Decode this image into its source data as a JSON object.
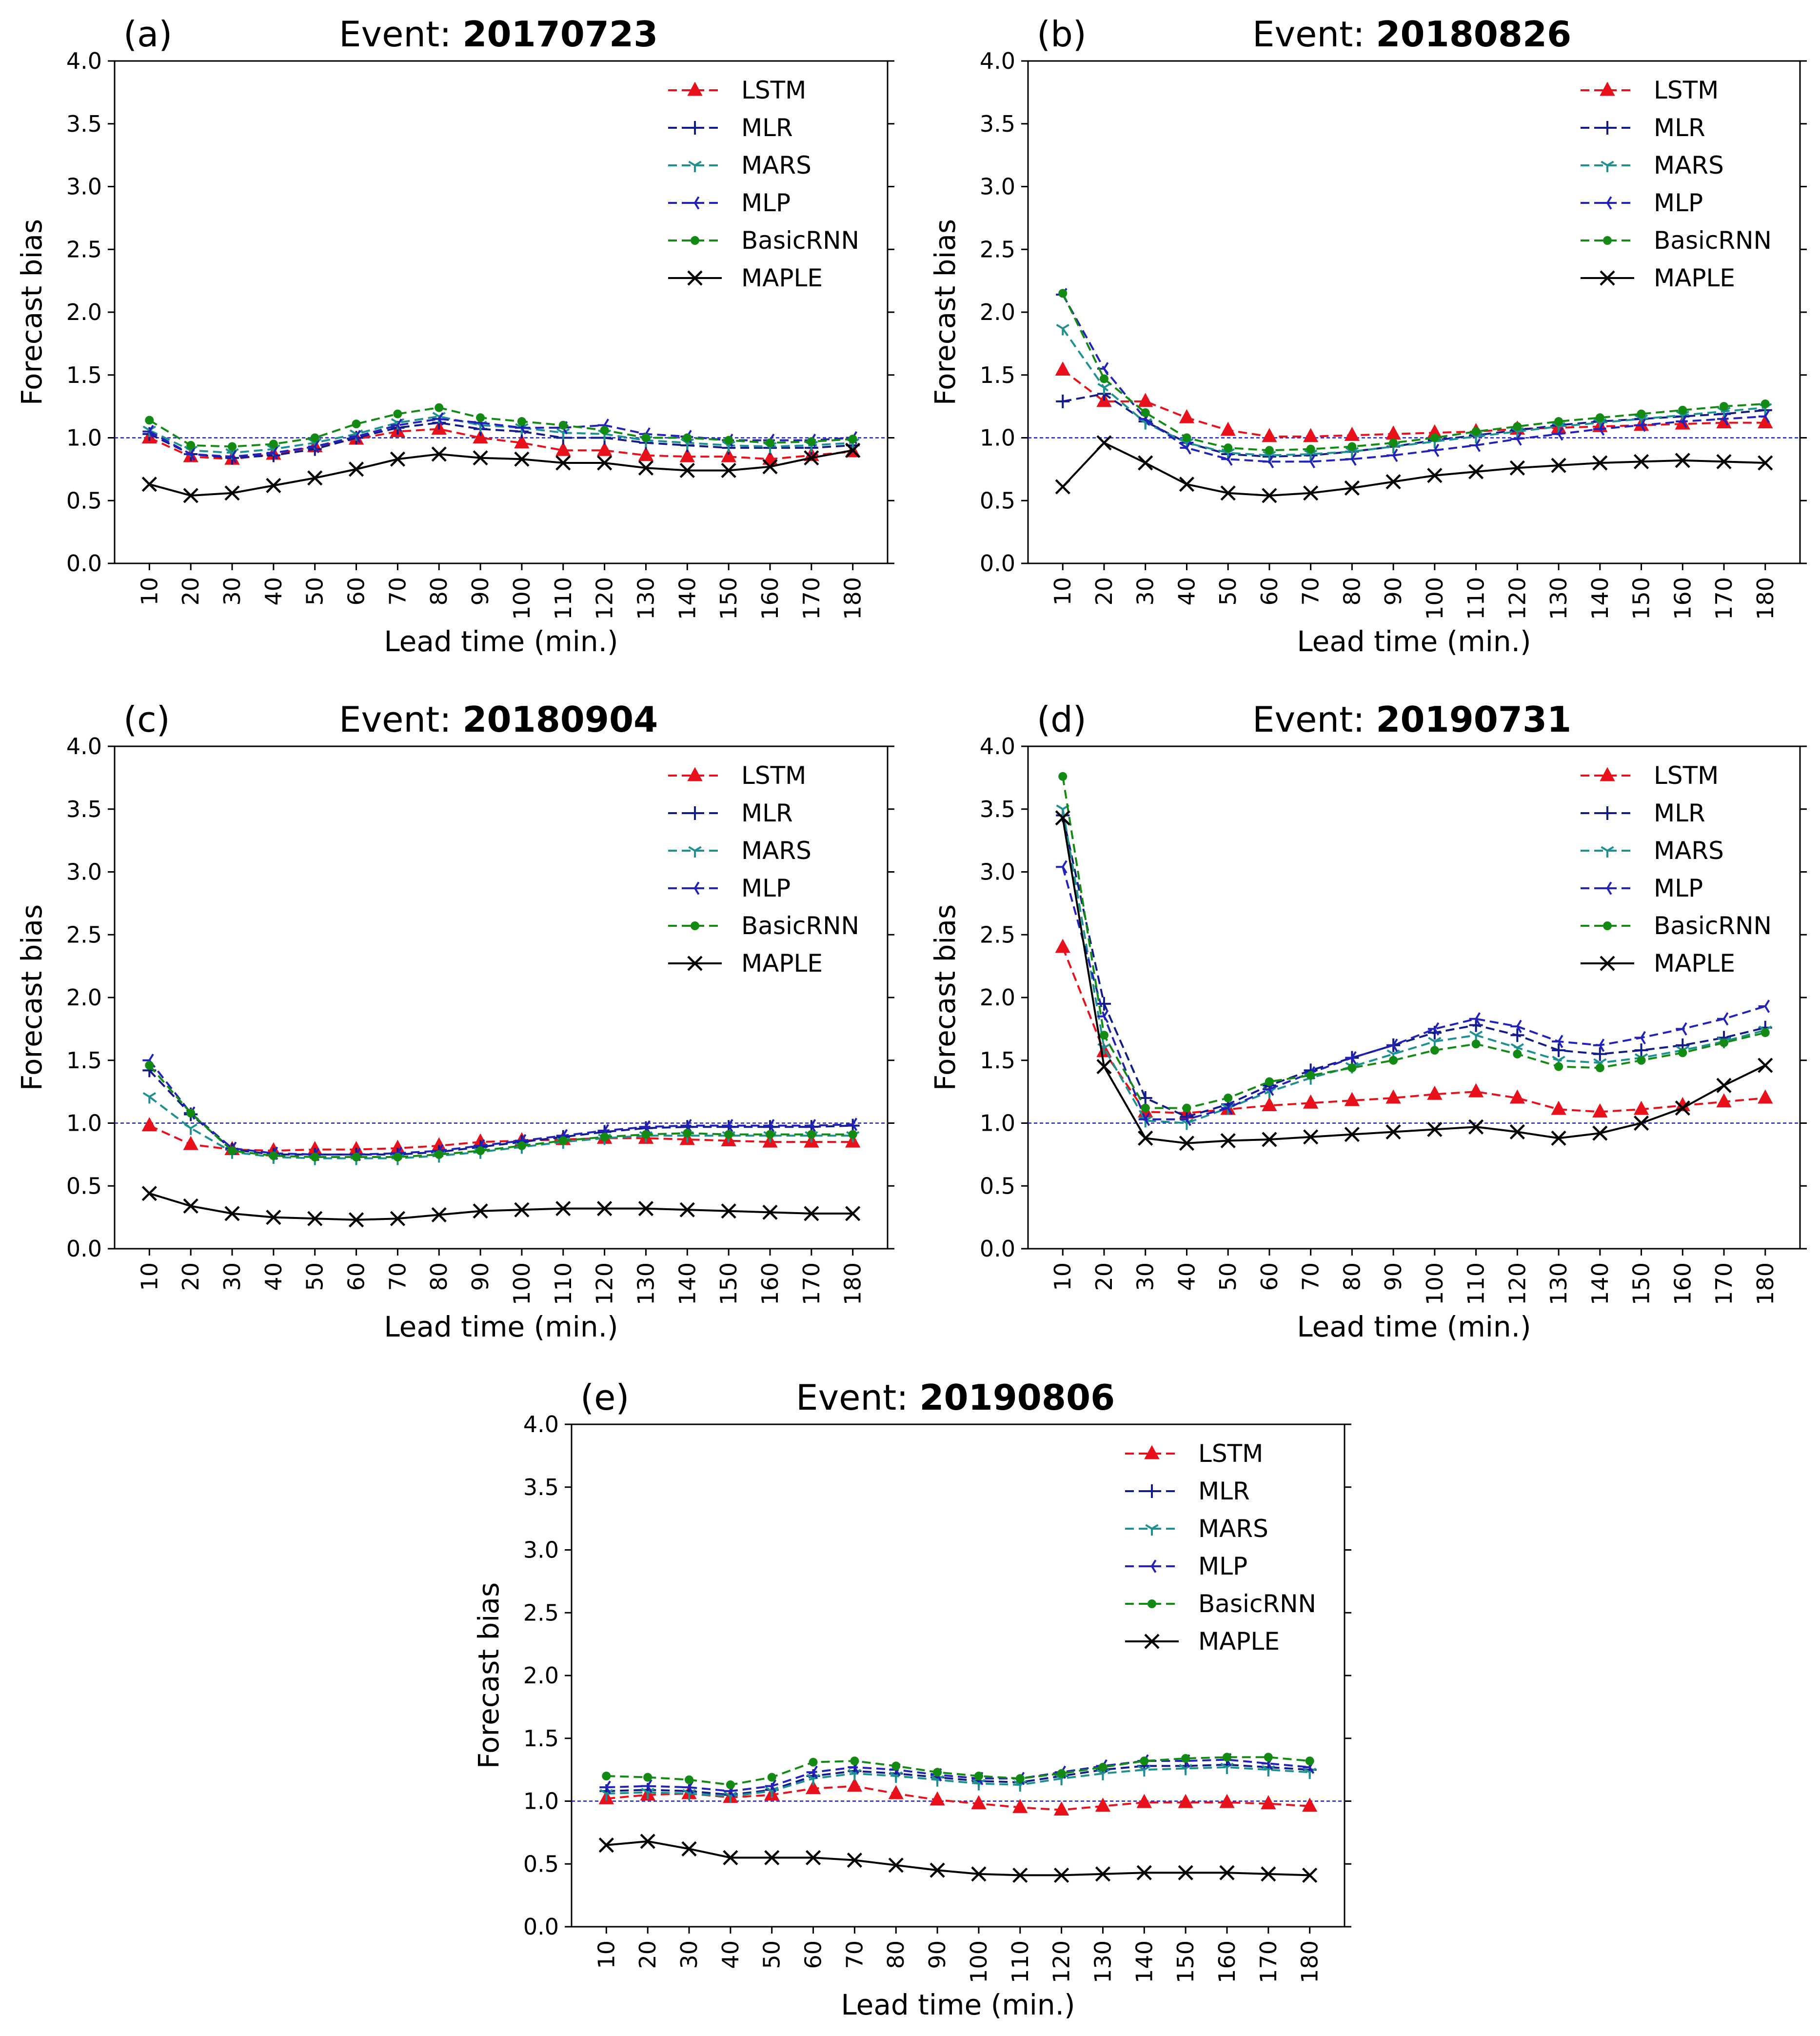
{
  "chart_data": [
    {
      "type": "line",
      "panel": "(a)",
      "title_prefix": "Event: ",
      "title_event": "20170723",
      "xlabel": "Lead time (min.)",
      "ylabel": "Forecast bias",
      "ylim": [
        0,
        4
      ],
      "yticks": [
        "0.0",
        "0.5",
        "1.0",
        "1.5",
        "2.0",
        "2.5",
        "3.0",
        "3.5",
        "4.0"
      ],
      "x": [
        10,
        20,
        30,
        40,
        50,
        60,
        70,
        80,
        90,
        100,
        110,
        120,
        130,
        140,
        150,
        160,
        170,
        180
      ],
      "reference_line": 1.0,
      "legend_position": "top-right",
      "series": [
        {
          "name": "LSTM",
          "values": [
            1.0,
            0.85,
            0.83,
            0.87,
            0.93,
            0.99,
            1.05,
            1.07,
            1.0,
            0.96,
            0.9,
            0.9,
            0.86,
            0.85,
            0.85,
            0.83,
            0.86,
            0.89
          ]
        },
        {
          "name": "MLR",
          "values": [
            1.03,
            0.87,
            0.84,
            0.86,
            0.91,
            1.0,
            1.08,
            1.12,
            1.07,
            1.05,
            1.0,
            1.0,
            0.96,
            0.94,
            0.92,
            0.92,
            0.92,
            0.94
          ]
        },
        {
          "name": "MARS",
          "values": [
            1.06,
            0.9,
            0.88,
            0.91,
            0.96,
            1.03,
            1.12,
            1.17,
            1.1,
            1.08,
            1.04,
            1.03,
            0.98,
            0.96,
            0.94,
            0.93,
            0.94,
            0.96
          ]
        },
        {
          "name": "MLP",
          "values": [
            1.05,
            0.87,
            0.85,
            0.88,
            0.93,
            1.01,
            1.1,
            1.15,
            1.12,
            1.08,
            1.08,
            1.1,
            1.03,
            1.01,
            0.98,
            0.98,
            0.98,
            1.0
          ]
        },
        {
          "name": "BasicRNN",
          "values": [
            1.14,
            0.94,
            0.93,
            0.95,
            1.0,
            1.11,
            1.19,
            1.24,
            1.16,
            1.13,
            1.1,
            1.06,
            1.0,
            1.0,
            0.98,
            0.96,
            0.97,
            0.99
          ]
        },
        {
          "name": "MAPLE",
          "values": [
            0.63,
            0.54,
            0.56,
            0.62,
            0.68,
            0.75,
            0.83,
            0.87,
            0.84,
            0.83,
            0.8,
            0.8,
            0.76,
            0.74,
            0.74,
            0.77,
            0.84,
            0.9
          ]
        }
      ]
    },
    {
      "type": "line",
      "panel": "(b)",
      "title_prefix": "Event: ",
      "title_event": "20180826",
      "xlabel": "Lead time (min.)",
      "ylabel": "Forecast bias",
      "ylim": [
        0,
        4
      ],
      "yticks": [
        "0.0",
        "0.5",
        "1.0",
        "1.5",
        "2.0",
        "2.5",
        "3.0",
        "3.5",
        "4.0"
      ],
      "x": [
        10,
        20,
        30,
        40,
        50,
        60,
        70,
        80,
        90,
        100,
        110,
        120,
        130,
        140,
        150,
        160,
        170,
        180
      ],
      "reference_line": 1.0,
      "legend_position": "top-right",
      "series": [
        {
          "name": "LSTM",
          "values": [
            1.54,
            1.29,
            1.29,
            1.16,
            1.06,
            1.01,
            1.01,
            1.02,
            1.03,
            1.04,
            1.05,
            1.07,
            1.08,
            1.09,
            1.1,
            1.11,
            1.12,
            1.12
          ]
        },
        {
          "name": "MLR",
          "values": [
            1.29,
            1.35,
            1.13,
            0.96,
            0.87,
            0.85,
            0.86,
            0.89,
            0.93,
            0.98,
            1.02,
            1.06,
            1.1,
            1.13,
            1.15,
            1.17,
            1.19,
            1.22
          ]
        },
        {
          "name": "MARS",
          "values": [
            1.87,
            1.4,
            1.12,
            0.96,
            0.88,
            0.86,
            0.87,
            0.89,
            0.93,
            0.97,
            1.01,
            1.05,
            1.09,
            1.12,
            1.15,
            1.18,
            1.21,
            1.24
          ]
        },
        {
          "name": "MLP",
          "values": [
            2.14,
            1.55,
            1.15,
            0.92,
            0.83,
            0.81,
            0.81,
            0.83,
            0.86,
            0.9,
            0.94,
            0.99,
            1.03,
            1.07,
            1.1,
            1.13,
            1.15,
            1.17
          ]
        },
        {
          "name": "BasicRNN",
          "values": [
            2.15,
            1.47,
            1.2,
            1.0,
            0.92,
            0.9,
            0.91,
            0.93,
            0.96,
            1.0,
            1.05,
            1.09,
            1.13,
            1.16,
            1.19,
            1.22,
            1.25,
            1.27
          ]
        },
        {
          "name": "MAPLE",
          "values": [
            0.61,
            0.96,
            0.8,
            0.63,
            0.56,
            0.54,
            0.56,
            0.6,
            0.65,
            0.7,
            0.73,
            0.76,
            0.78,
            0.8,
            0.81,
            0.82,
            0.81,
            0.8
          ]
        }
      ]
    },
    {
      "type": "line",
      "panel": "(c)",
      "title_prefix": "Event: ",
      "title_event": "20180904",
      "xlabel": "Lead time (min.)",
      "ylabel": "Forecast bias",
      "ylim": [
        0,
        4
      ],
      "yticks": [
        "0.0",
        "0.5",
        "1.0",
        "1.5",
        "2.0",
        "2.5",
        "3.0",
        "3.5",
        "4.0"
      ],
      "x": [
        10,
        20,
        30,
        40,
        50,
        60,
        70,
        80,
        90,
        100,
        110,
        120,
        130,
        140,
        150,
        160,
        170,
        180
      ],
      "reference_line": 1.0,
      "legend_position": "top-right",
      "series": [
        {
          "name": "LSTM",
          "values": [
            0.98,
            0.83,
            0.79,
            0.78,
            0.79,
            0.79,
            0.8,
            0.82,
            0.85,
            0.86,
            0.87,
            0.88,
            0.88,
            0.87,
            0.86,
            0.85,
            0.85,
            0.85
          ]
        },
        {
          "name": "MLR",
          "values": [
            1.42,
            1.07,
            0.79,
            0.75,
            0.75,
            0.75,
            0.75,
            0.77,
            0.81,
            0.85,
            0.89,
            0.93,
            0.96,
            0.97,
            0.97,
            0.97,
            0.97,
            0.98
          ]
        },
        {
          "name": "MARS",
          "values": [
            1.21,
            0.96,
            0.77,
            0.73,
            0.72,
            0.72,
            0.72,
            0.74,
            0.77,
            0.81,
            0.85,
            0.88,
            0.9,
            0.9,
            0.9,
            0.9,
            0.9,
            0.9
          ]
        },
        {
          "name": "MLP",
          "values": [
            1.5,
            1.08,
            0.8,
            0.76,
            0.75,
            0.75,
            0.76,
            0.78,
            0.82,
            0.86,
            0.9,
            0.94,
            0.97,
            0.98,
            0.98,
            0.98,
            0.98,
            0.99
          ]
        },
        {
          "name": "BasicRNN",
          "values": [
            1.46,
            1.08,
            0.78,
            0.74,
            0.73,
            0.73,
            0.73,
            0.75,
            0.78,
            0.82,
            0.86,
            0.89,
            0.91,
            0.92,
            0.91,
            0.91,
            0.91,
            0.91
          ]
        },
        {
          "name": "MAPLE",
          "values": [
            0.44,
            0.34,
            0.28,
            0.25,
            0.24,
            0.23,
            0.24,
            0.27,
            0.3,
            0.31,
            0.32,
            0.32,
            0.32,
            0.31,
            0.3,
            0.29,
            0.28,
            0.28
          ]
        }
      ]
    },
    {
      "type": "line",
      "panel": "(d)",
      "title_prefix": "Event: ",
      "title_event": "20190731",
      "xlabel": "Lead time (min.)",
      "ylabel": "Forecast bias",
      "ylim": [
        0,
        4
      ],
      "yticks": [
        "0.0",
        "0.5",
        "1.0",
        "1.5",
        "2.0",
        "2.5",
        "3.0",
        "3.5",
        "4.0"
      ],
      "x": [
        10,
        20,
        30,
        40,
        50,
        60,
        70,
        80,
        90,
        100,
        110,
        120,
        130,
        140,
        150,
        160,
        170,
        180
      ],
      "reference_line": 1.0,
      "legend_position": "top-right",
      "series": [
        {
          "name": "LSTM",
          "values": [
            2.4,
            1.57,
            1.09,
            1.08,
            1.11,
            1.14,
            1.16,
            1.18,
            1.2,
            1.23,
            1.25,
            1.2,
            1.11,
            1.09,
            1.11,
            1.14,
            1.17,
            1.2
          ]
        },
        {
          "name": "MLR",
          "values": [
            3.45,
            1.95,
            1.2,
            1.05,
            1.15,
            1.3,
            1.42,
            1.52,
            1.62,
            1.72,
            1.78,
            1.7,
            1.58,
            1.55,
            1.58,
            1.62,
            1.68,
            1.76
          ]
        },
        {
          "name": "MARS",
          "values": [
            3.5,
            1.6,
            1.02,
            1.0,
            1.12,
            1.25,
            1.36,
            1.45,
            1.55,
            1.65,
            1.7,
            1.6,
            1.5,
            1.48,
            1.52,
            1.58,
            1.65,
            1.74
          ]
        },
        {
          "name": "MLP",
          "values": [
            3.04,
            1.85,
            1.03,
            1.03,
            1.12,
            1.27,
            1.4,
            1.52,
            1.62,
            1.75,
            1.83,
            1.77,
            1.65,
            1.62,
            1.68,
            1.75,
            1.83,
            1.93
          ]
        },
        {
          "name": "BasicRNN",
          "values": [
            3.76,
            1.7,
            1.12,
            1.12,
            1.2,
            1.33,
            1.38,
            1.44,
            1.5,
            1.58,
            1.63,
            1.55,
            1.45,
            1.44,
            1.5,
            1.56,
            1.64,
            1.72
          ]
        },
        {
          "name": "MAPLE",
          "values": [
            3.43,
            1.45,
            0.88,
            0.84,
            0.86,
            0.87,
            0.89,
            0.91,
            0.93,
            0.95,
            0.97,
            0.93,
            0.88,
            0.92,
            1.0,
            1.12,
            1.3,
            1.46
          ]
        }
      ]
    },
    {
      "type": "line",
      "panel": "(e)",
      "title_prefix": "Event: ",
      "title_event": "20190806",
      "xlabel": "Lead time (min.)",
      "ylabel": "Forecast bias",
      "ylim": [
        0,
        4
      ],
      "yticks": [
        "0.0",
        "0.5",
        "1.0",
        "1.5",
        "2.0",
        "2.5",
        "3.0",
        "3.5",
        "4.0"
      ],
      "x": [
        10,
        20,
        30,
        40,
        50,
        60,
        70,
        80,
        90,
        100,
        110,
        120,
        130,
        140,
        150,
        160,
        170,
        180
      ],
      "reference_line": 1.0,
      "legend_position": "top-right",
      "series": [
        {
          "name": "LSTM",
          "values": [
            1.02,
            1.05,
            1.06,
            1.03,
            1.05,
            1.1,
            1.12,
            1.06,
            1.01,
            0.98,
            0.95,
            0.93,
            0.96,
            0.99,
            0.99,
            0.99,
            0.98,
            0.96
          ]
        },
        {
          "name": "MLR",
          "values": [
            1.08,
            1.09,
            1.08,
            1.05,
            1.09,
            1.2,
            1.24,
            1.22,
            1.19,
            1.16,
            1.15,
            1.2,
            1.25,
            1.28,
            1.28,
            1.29,
            1.27,
            1.25
          ]
        },
        {
          "name": "MARS",
          "values": [
            1.06,
            1.07,
            1.06,
            1.04,
            1.08,
            1.18,
            1.22,
            1.2,
            1.17,
            1.14,
            1.13,
            1.18,
            1.22,
            1.25,
            1.26,
            1.27,
            1.25,
            1.23
          ]
        },
        {
          "name": "MLP",
          "values": [
            1.11,
            1.12,
            1.11,
            1.08,
            1.12,
            1.23,
            1.27,
            1.25,
            1.21,
            1.18,
            1.18,
            1.23,
            1.28,
            1.32,
            1.32,
            1.33,
            1.3,
            1.27
          ]
        },
        {
          "name": "BasicRNN",
          "values": [
            1.2,
            1.19,
            1.17,
            1.13,
            1.19,
            1.31,
            1.32,
            1.28,
            1.23,
            1.2,
            1.18,
            1.22,
            1.27,
            1.32,
            1.34,
            1.35,
            1.35,
            1.32
          ]
        },
        {
          "name": "MAPLE",
          "values": [
            0.65,
            0.68,
            0.62,
            0.55,
            0.55,
            0.55,
            0.53,
            0.49,
            0.45,
            0.42,
            0.41,
            0.41,
            0.42,
            0.43,
            0.43,
            0.43,
            0.42,
            0.41
          ]
        }
      ]
    }
  ],
  "series_style": {
    "LSTM": {
      "color": "#e8101a",
      "marker": "triangle",
      "dash": "dashed"
    },
    "MLR": {
      "color": "#121b8a",
      "marker": "plus",
      "dash": "dashed"
    },
    "MARS": {
      "color": "#1e9090",
      "marker": "tri_down",
      "dash": "dashed"
    },
    "MLP": {
      "color": "#2222bb",
      "marker": "tri_right",
      "dash": "dashed"
    },
    "BasicRNN": {
      "color": "#138a13",
      "marker": "dot",
      "dash": "dashed"
    },
    "MAPLE": {
      "color": "#000000",
      "marker": "x",
      "dash": "solid"
    }
  },
  "reference_line_color": "#2020c8"
}
